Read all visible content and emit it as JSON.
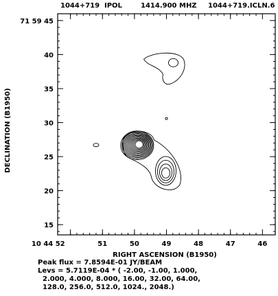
{
  "header": {
    "source": "1044+719",
    "stokes": "IPOL",
    "frequency": "1414.900 MHZ",
    "file": "1044+719.ICLN.6"
  },
  "chart_data": {
    "type": "contour",
    "xlabel": "RIGHT ASCENSION (B1950)",
    "ylabel": "DECLINATION (B1950)",
    "x_ticks": [
      {
        "value": 52,
        "label": "10 44 52"
      },
      {
        "value": 51,
        "label": "51"
      },
      {
        "value": 50,
        "label": "50"
      },
      {
        "value": 49,
        "label": "49"
      },
      {
        "value": 48,
        "label": "48"
      },
      {
        "value": 47,
        "label": "47"
      },
      {
        "value": 46,
        "label": "46"
      }
    ],
    "y_ticks": [
      {
        "value": 45,
        "label": "71 59 45"
      },
      {
        "value": 40,
        "label": "40"
      },
      {
        "value": 35,
        "label": "35"
      },
      {
        "value": 30,
        "label": "30"
      },
      {
        "value": 25,
        "label": "25"
      },
      {
        "value": 20,
        "label": "20"
      },
      {
        "value": 15,
        "label": "15"
      }
    ],
    "xlim": [
      52.4,
      45.6
    ],
    "ylim": [
      13.5,
      46.0
    ],
    "peak_flux_label": "Peak flux =",
    "peak_flux_value": "7.8594E-01",
    "peak_flux_unit": "JY/BEAM",
    "levs_label": "Levs =",
    "levs_scale": "5.7119E-04 * (",
    "levs_lines": [
      "-2.00, -1.00, 1.000,",
      "2.000, 4.000, 8.000, 16.00, 32.00, 64.00,",
      "128.0, 256.0, 512.0, 1024., 2048.)"
    ],
    "components": [
      {
        "x": 49.85,
        "y": 26.8,
        "peak_level": 12
      },
      {
        "x": 49.0,
        "y": 22.6,
        "peak_level": 4
      },
      {
        "x": 48.85,
        "y": 38.7,
        "peak_level": 2
      },
      {
        "x": 51.2,
        "y": 26.7,
        "peak_level": 1
      },
      {
        "x": 49.0,
        "y": 30.6,
        "peak_level": 1
      }
    ]
  }
}
